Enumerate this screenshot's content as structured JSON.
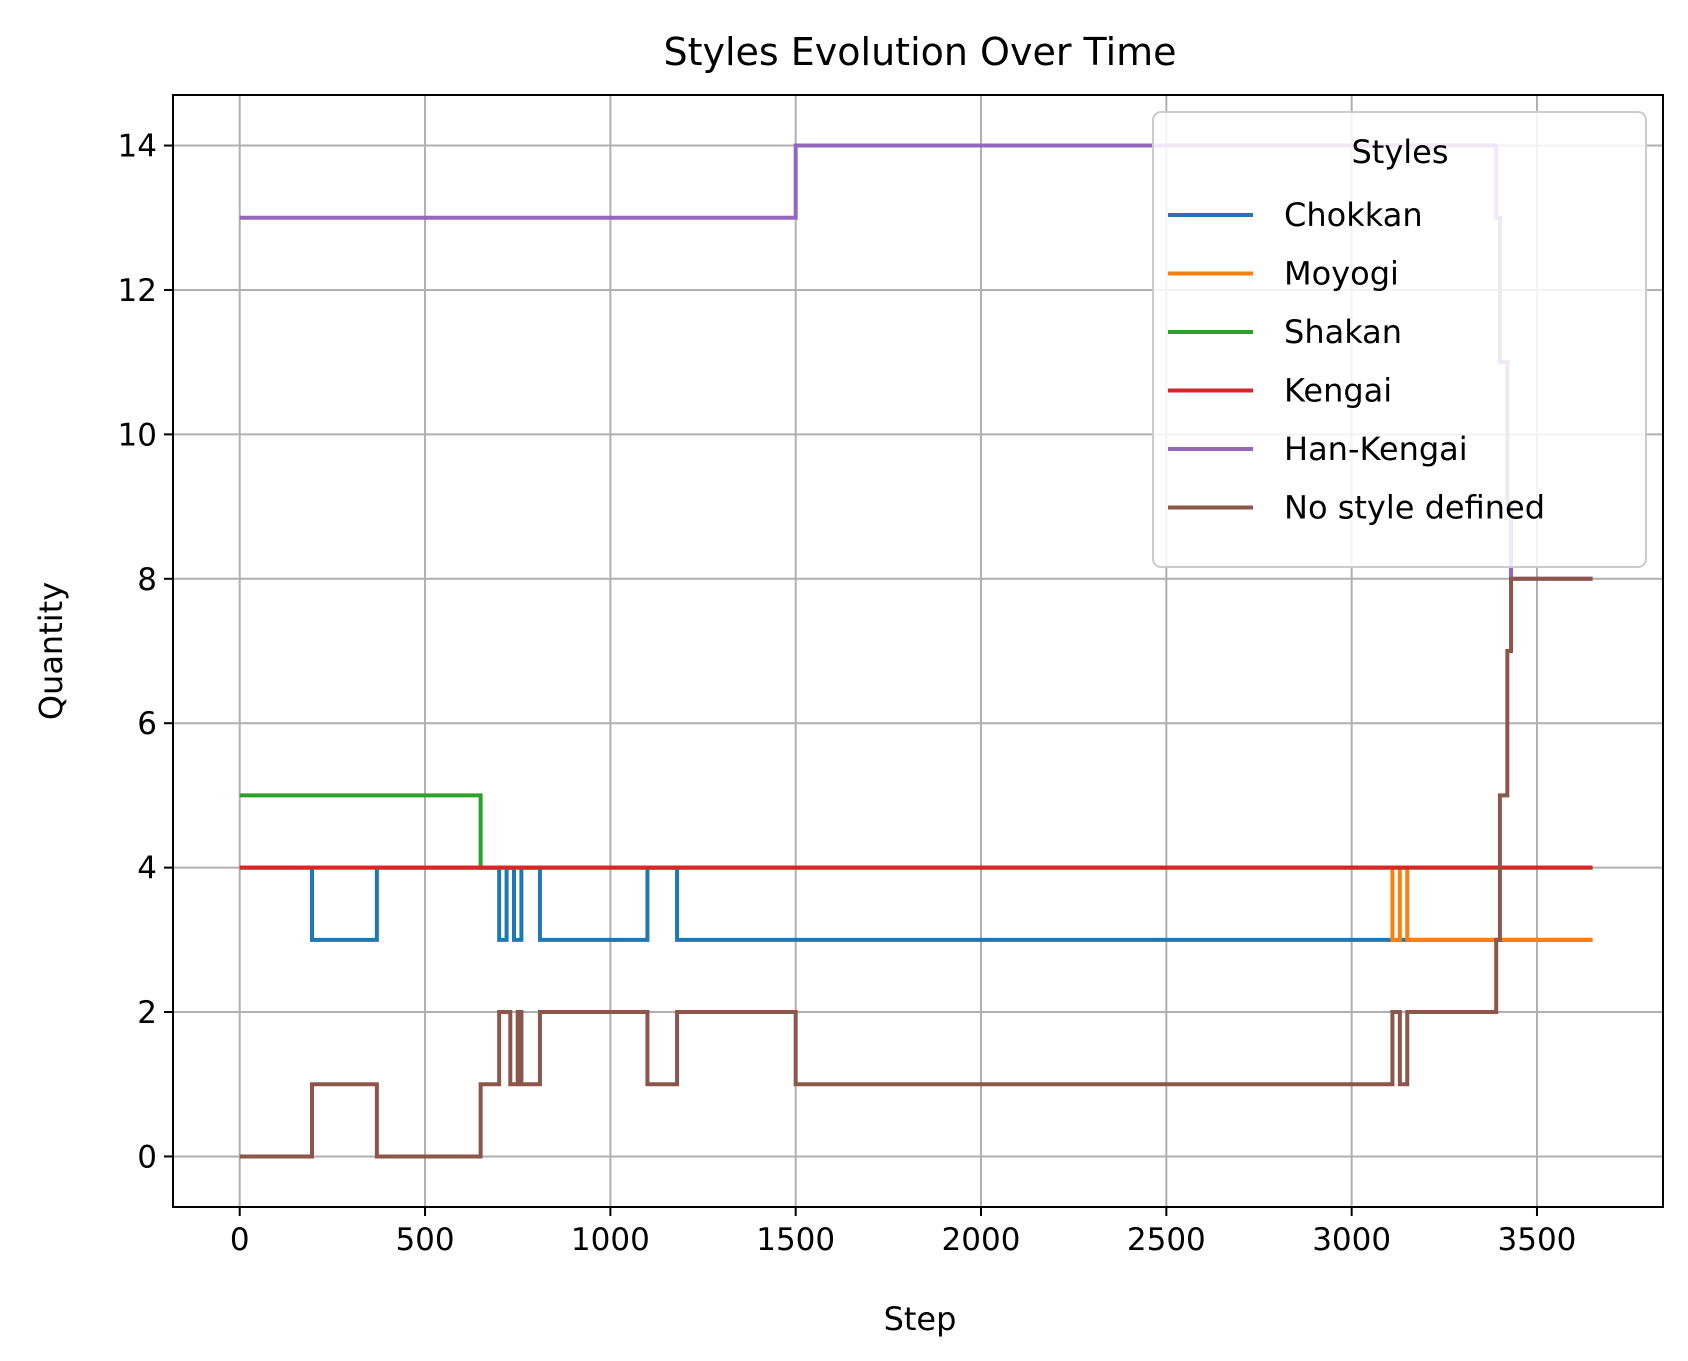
{
  "chart_data": {
    "type": "line",
    "title": "Styles Evolution Over Time",
    "xlabel": "Step",
    "ylabel": "Quantity",
    "xlim": [
      -180,
      3840
    ],
    "ylim": [
      -0.7,
      14.7
    ],
    "xticks": [
      0,
      500,
      1000,
      1500,
      2000,
      2500,
      3000,
      3500
    ],
    "yticks": [
      0,
      2,
      4,
      6,
      8,
      10,
      12,
      14
    ],
    "grid": true,
    "legend": {
      "title": "Styles",
      "location": "upper right"
    },
    "step": "post",
    "series": [
      {
        "name": "Chokkan",
        "color": "#1f77b4",
        "points": [
          [
            0,
            4
          ],
          [
            195,
            3
          ],
          [
            370,
            4
          ],
          [
            700,
            3
          ],
          [
            720,
            4
          ],
          [
            740,
            3
          ],
          [
            760,
            4
          ],
          [
            810,
            3
          ],
          [
            1100,
            4
          ],
          [
            1180,
            3
          ],
          [
            3120,
            3
          ],
          [
            3650,
            3
          ]
        ]
      },
      {
        "name": "Moyogi",
        "color": "#ff7f0e",
        "points": [
          [
            0,
            4
          ],
          [
            3110,
            3
          ],
          [
            3130,
            4
          ],
          [
            3150,
            3
          ],
          [
            3650,
            3
          ]
        ]
      },
      {
        "name": "Shakan",
        "color": "#2ca02c",
        "points": [
          [
            0,
            5
          ],
          [
            650,
            4
          ],
          [
            3650,
            4
          ]
        ]
      },
      {
        "name": "Kengai",
        "color": "#d62728",
        "points": [
          [
            0,
            4
          ],
          [
            3650,
            4
          ]
        ]
      },
      {
        "name": "Han-Kengai",
        "color": "#9467bd",
        "points": [
          [
            0,
            13
          ],
          [
            1500,
            14
          ],
          [
            3390,
            13
          ],
          [
            3400,
            11
          ],
          [
            3420,
            9
          ],
          [
            3430,
            8
          ],
          [
            3650,
            8
          ]
        ]
      },
      {
        "name": "No style defined",
        "color": "#8c564b",
        "points": [
          [
            0,
            0
          ],
          [
            195,
            1
          ],
          [
            370,
            0
          ],
          [
            650,
            1
          ],
          [
            700,
            2
          ],
          [
            730,
            1
          ],
          [
            750,
            2
          ],
          [
            760,
            1
          ],
          [
            810,
            2
          ],
          [
            1100,
            1
          ],
          [
            1180,
            2
          ],
          [
            1500,
            1
          ],
          [
            3110,
            2
          ],
          [
            3130,
            1
          ],
          [
            3150,
            2
          ],
          [
            3390,
            3
          ],
          [
            3400,
            5
          ],
          [
            3420,
            7
          ],
          [
            3430,
            8
          ],
          [
            3650,
            8
          ]
        ]
      }
    ]
  }
}
